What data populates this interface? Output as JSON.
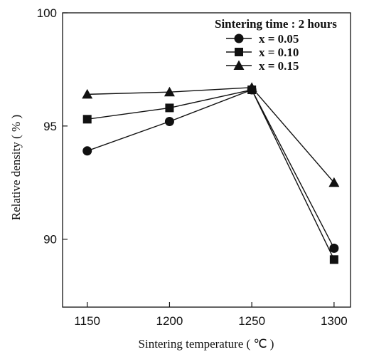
{
  "chart_data": {
    "type": "line",
    "title": "",
    "xlabel": "Sintering temperature ( ℃ )",
    "ylabel": "Relative density ( % )",
    "x": [
      1150,
      1200,
      1250,
      1300
    ],
    "x_ticks": [
      "1150",
      "1200",
      "1250",
      "1300"
    ],
    "y_ticks": [
      "90",
      "95",
      "100"
    ],
    "xlim": [
      1135,
      1310
    ],
    "ylim": [
      87,
      100
    ],
    "grid": false,
    "legend_title": "Sintering time : 2 hours",
    "legend_position": "top-right",
    "series": [
      {
        "name": "x = 0.05",
        "marker": "circle",
        "color": "#111111",
        "values": [
          93.9,
          95.2,
          96.6,
          89.6
        ]
      },
      {
        "name": "x = 0.10",
        "marker": "square",
        "color": "#111111",
        "values": [
          95.3,
          95.8,
          96.6,
          89.1
        ]
      },
      {
        "name": "x = 0.15",
        "marker": "triangle",
        "color": "#111111",
        "values": [
          96.4,
          96.5,
          96.7,
          92.5
        ]
      }
    ]
  }
}
